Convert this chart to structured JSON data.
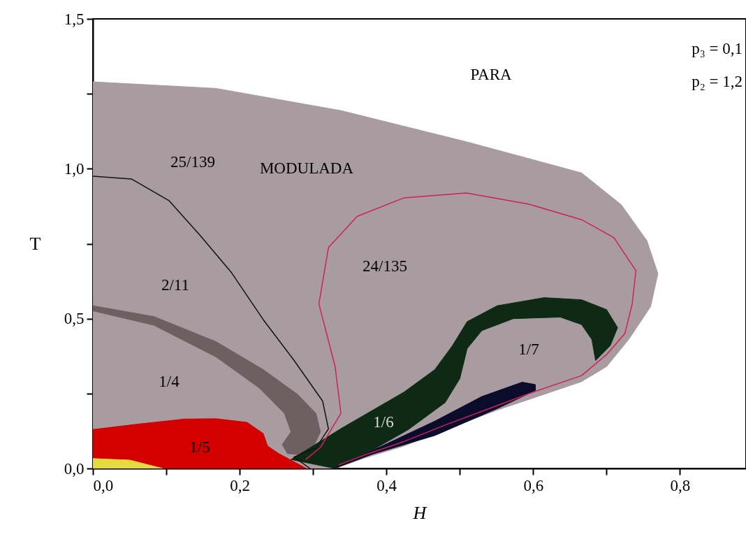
{
  "chart_data": {
    "type": "line",
    "xlabel": "H",
    "ylabel": "T",
    "xlim": [
      0,
      0.89
    ],
    "ylim": [
      0,
      1.5
    ],
    "xticks": [
      {
        "value": 0,
        "label": "0,0"
      },
      {
        "value": 0.1,
        "label": null
      },
      {
        "value": 0.2,
        "label": "0,2"
      },
      {
        "value": 0.3,
        "label": null
      },
      {
        "value": 0.4,
        "label": "0,4"
      },
      {
        "value": 0.5,
        "label": null
      },
      {
        "value": 0.6,
        "label": "0,6"
      },
      {
        "value": 0.7,
        "label": null
      },
      {
        "value": 0.8,
        "label": "0,8"
      }
    ],
    "yticks": [
      {
        "value": 0,
        "label": "0,0"
      },
      {
        "value": 0.25,
        "label": null
      },
      {
        "value": 0.5,
        "label": "0,5"
      },
      {
        "value": 0.75,
        "label": null
      },
      {
        "value": 1,
        "label": "1,0"
      },
      {
        "value": 1.25,
        "label": null
      },
      {
        "value": 1.5,
        "label": "1,5"
      }
    ],
    "series": [
      {
        "type": "area",
        "name": "MODULADA",
        "color": "#a99ca0",
        "x": [
          0,
          0,
          0.168,
          0.338,
          0.509,
          0.6,
          0.666,
          0.72,
          0.755,
          0.77,
          0.76,
          0.73,
          0.7,
          0.666,
          0.6,
          0.551,
          0.48,
          0.424,
          0.37,
          0.33,
          0
        ],
        "values": [
          0,
          1.29,
          1.268,
          1.194,
          1.09,
          1.03,
          0.986,
          0.88,
          0.76,
          0.65,
          0.54,
          0.43,
          0.34,
          0.29,
          0.235,
          0.195,
          0.13,
          0.075,
          0.035,
          0,
          0
        ]
      },
      {
        "type": "area",
        "color": "#6e5f63",
        "x": [
          0,
          0.083,
          0.168,
          0.232,
          0.279,
          0.304,
          0.31,
          0.3,
          0.285,
          0.265,
          0.258,
          0.27,
          0.261,
          0.227,
          0.168,
          0.083,
          0
        ],
        "values": [
          0.543,
          0.507,
          0.423,
          0.33,
          0.247,
          0.184,
          0.122,
          0.07,
          0.045,
          0.05,
          0.08,
          0.122,
          0.184,
          0.268,
          0.372,
          0.478,
          0.526
        ]
      },
      {
        "type": "area",
        "name": "1/5",
        "color": "#d40000",
        "x": [
          0,
          0,
          0.061,
          0.125,
          0.168,
          0.21,
          0.232,
          0.238,
          0.253,
          0.291,
          0
        ],
        "values": [
          0,
          0.13,
          0.148,
          0.165,
          0.166,
          0.154,
          0.117,
          0.075,
          0.05,
          0,
          0
        ]
      },
      {
        "type": "area",
        "color": "#e3dc3a",
        "x": [
          0,
          0,
          0.05,
          0.095,
          0
        ],
        "values": [
          0,
          0.033,
          0.028,
          0,
          0
        ]
      },
      {
        "type": "area",
        "name": "1/6",
        "color": "#0f2a14",
        "x": [
          0.27,
          0.338,
          0.424,
          0.466,
          0.49,
          0.51,
          0.551,
          0.615,
          0.666,
          0.7,
          0.715,
          0.705,
          0.685,
          0.68,
          0.666,
          0.637,
          0.573,
          0.53,
          0.51,
          0.5,
          0.48,
          0.43,
          0.38,
          0.33,
          0.27
        ],
        "values": [
          0.03,
          0.133,
          0.255,
          0.33,
          0.41,
          0.49,
          0.543,
          0.57,
          0.563,
          0.53,
          0.47,
          0.41,
          0.36,
          0.43,
          0.48,
          0.505,
          0.5,
          0.46,
          0.4,
          0.3,
          0.22,
          0.13,
          0.06,
          0,
          0.03
        ]
      },
      {
        "type": "area",
        "color": "#0b0b2c",
        "x": [
          0.329,
          0.381,
          0.466,
          0.53,
          0.585,
          0.603,
          0.603,
          0.551,
          0.466,
          0.381,
          0.329
        ],
        "values": [
          0,
          0.06,
          0.158,
          0.24,
          0.288,
          0.28,
          0.26,
          0.2,
          0.11,
          0.048,
          0
        ]
      },
      {
        "name": "25/139",
        "color": "#111111",
        "x": [
          0,
          0.0525,
          0.104,
          0.146,
          0.189,
          0.232,
          0.274,
          0.313,
          0.321,
          0.304,
          0.274,
          0.296
        ],
        "values": [
          0.975,
          0.966,
          0.893,
          0.778,
          0.653,
          0.497,
          0.361,
          0.225,
          0.132,
          0.069,
          0.038,
          0
        ]
      },
      {
        "color": "#d0205a",
        "x": [
          0.29,
          0.31,
          0.338,
          0.33,
          0.308,
          0.321,
          0.36,
          0.424,
          0.509,
          0.594,
          0.666,
          0.71,
          0.74,
          0.735,
          0.725,
          0.7,
          0.666,
          0.6,
          0.551,
          0.48,
          0.424,
          0.37,
          0.335
        ],
        "values": [
          0.03,
          0.07,
          0.184,
          0.341,
          0.549,
          0.737,
          0.841,
          0.903,
          0.919,
          0.882,
          0.83,
          0.77,
          0.66,
          0.55,
          0.45,
          0.38,
          0.31,
          0.255,
          0.21,
          0.145,
          0.09,
          0.045,
          0.012
        ]
      }
    ],
    "annotations": [
      "PARA",
      "p₃ = 0,1",
      "p₂ = 1,2",
      "2/11",
      "1/4",
      "1/7",
      "24/135"
    ]
  }
}
